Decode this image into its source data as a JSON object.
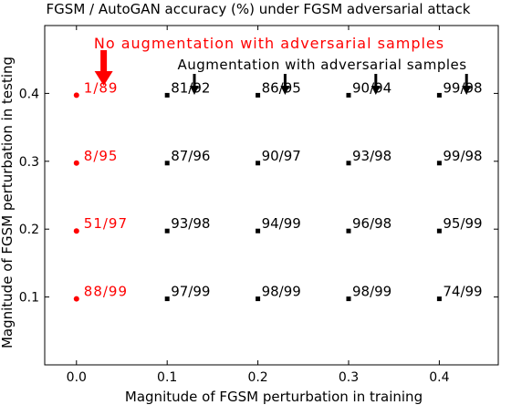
{
  "chart_data": {
    "type": "scatter",
    "title": "FGSM / AutoGAN accuracy (%) under FGSM adversarial attack",
    "xlabel": "Magnitude of FGSM perturbation in training",
    "ylabel": "Magnitude of FGSM perturbation in testing",
    "xlim": [
      -0.035,
      0.465
    ],
    "ylim": [
      0.0,
      0.5
    ],
    "xticks": [
      "0.0",
      "0.1",
      "0.2",
      "0.3",
      "0.4"
    ],
    "yticks": [
      "0.1",
      "0.2",
      "0.3",
      "0.4"
    ],
    "xtick_values": [
      0.0,
      0.1,
      0.2,
      0.3,
      0.4
    ],
    "ytick_values": [
      0.1,
      0.2,
      0.3,
      0.4
    ],
    "grid": false,
    "series": [
      {
        "name": "No augmentation with adversarial samples",
        "color": "#ff0000",
        "marker": "circle",
        "points": [
          {
            "x": 0.0,
            "y": 0.4,
            "label": "1/89"
          },
          {
            "x": 0.0,
            "y": 0.3,
            "label": "8/95"
          },
          {
            "x": 0.0,
            "y": 0.2,
            "label": "51/97"
          },
          {
            "x": 0.0,
            "y": 0.1,
            "label": "88/99"
          }
        ]
      },
      {
        "name": "Augmentation with adversarial samples",
        "color": "#000000",
        "marker": "square",
        "points": [
          {
            "x": 0.1,
            "y": 0.4,
            "label": "81/92"
          },
          {
            "x": 0.2,
            "y": 0.4,
            "label": "86/95"
          },
          {
            "x": 0.3,
            "y": 0.4,
            "label": "90/94"
          },
          {
            "x": 0.4,
            "y": 0.4,
            "label": "99/98"
          },
          {
            "x": 0.1,
            "y": 0.3,
            "label": "87/96"
          },
          {
            "x": 0.2,
            "y": 0.3,
            "label": "90/97"
          },
          {
            "x": 0.3,
            "y": 0.3,
            "label": "93/98"
          },
          {
            "x": 0.4,
            "y": 0.3,
            "label": "99/98"
          },
          {
            "x": 0.1,
            "y": 0.2,
            "label": "93/98"
          },
          {
            "x": 0.2,
            "y": 0.2,
            "label": "94/99"
          },
          {
            "x": 0.3,
            "y": 0.2,
            "label": "96/98"
          },
          {
            "x": 0.4,
            "y": 0.2,
            "label": "95/99"
          },
          {
            "x": 0.1,
            "y": 0.1,
            "label": "97/99"
          },
          {
            "x": 0.2,
            "y": 0.1,
            "label": "98/99"
          },
          {
            "x": 0.3,
            "y": 0.1,
            "label": "98/99"
          },
          {
            "x": 0.4,
            "y": 0.1,
            "label": "74/99"
          }
        ]
      }
    ],
    "annotations": [
      {
        "text": "No augmentation with adversarial samples",
        "color": "#ff0000",
        "arrow_x": [
          0.03
        ]
      },
      {
        "text": "Augmentation with adversarial samples",
        "color": "#000000",
        "arrow_x": [
          0.13,
          0.23,
          0.33,
          0.43
        ]
      }
    ]
  }
}
